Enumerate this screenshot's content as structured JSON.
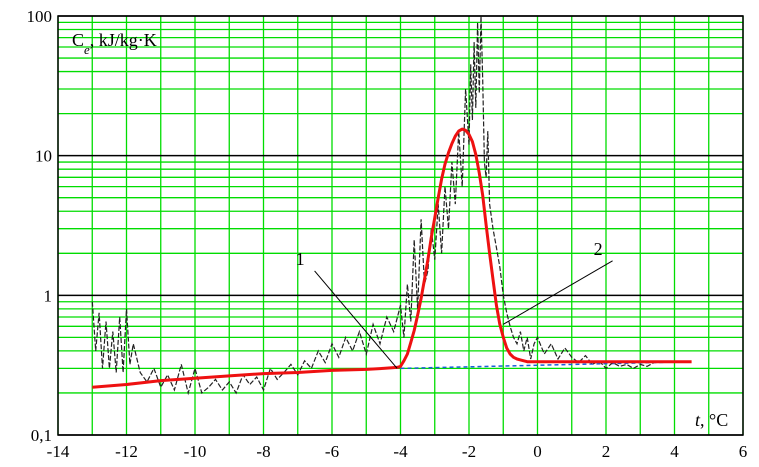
{
  "chart_data": {
    "type": "line",
    "x_scale": "linear",
    "y_scale": "log",
    "xlim": [
      -14,
      6
    ],
    "ylim": [
      0.1,
      100
    ],
    "grid": true,
    "y_axis_label_prefix": "C",
    "y_axis_label_sub": "e",
    "y_axis_label_suffix": ", kJ/kg·K",
    "x_axis_label_var": "t",
    "x_axis_label_unit": ", °C",
    "x_ticks": [
      "-14",
      "-12",
      "-10",
      "-8",
      "-6",
      "-4",
      "-2",
      "0",
      "2",
      "4",
      "6"
    ],
    "x_tick_values": [
      -14,
      -12,
      -10,
      -8,
      -6,
      -4,
      -2,
      0,
      2,
      4,
      6
    ],
    "y_ticks": [
      "0,1",
      "1",
      "10",
      "100"
    ],
    "y_tick_values": [
      0.1,
      1,
      10,
      100
    ],
    "annotations": [
      {
        "text": "1",
        "x": -4.1,
        "y": 0.3,
        "label_x": -6.8,
        "label_y": 1.65
      },
      {
        "text": "2",
        "x": -1.0,
        "y": 0.62,
        "label_x": 1.9,
        "label_y": 1.95
      }
    ],
    "colors": {
      "grid": "#00dd00",
      "major_grid": "#000000",
      "curve_2": "#ee1111",
      "curve_1": "#222222",
      "baseline": "#1a5fd8"
    },
    "series": [
      {
        "key": "curve_1",
        "style": "noisy",
        "x": [
          -13.0,
          -12.9,
          -12.8,
          -12.7,
          -12.6,
          -12.5,
          -12.4,
          -12.3,
          -12.2,
          -12.1,
          -12.0,
          -11.9,
          -11.8,
          -11.6,
          -11.4,
          -11.2,
          -11.0,
          -10.8,
          -10.6,
          -10.4,
          -10.2,
          -10.0,
          -9.8,
          -9.6,
          -9.4,
          -9.2,
          -9.0,
          -8.8,
          -8.6,
          -8.4,
          -8.2,
          -8.0,
          -7.8,
          -7.6,
          -7.4,
          -7.2,
          -7.0,
          -6.8,
          -6.6,
          -6.4,
          -6.2,
          -6.0,
          -5.8,
          -5.6,
          -5.4,
          -5.2,
          -5.0,
          -4.8,
          -4.6,
          -4.4,
          -4.2,
          -4.0,
          -3.9,
          -3.8,
          -3.7,
          -3.6,
          -3.5,
          -3.4,
          -3.3,
          -3.2,
          -3.1,
          -3.0,
          -2.9,
          -2.8,
          -2.7,
          -2.6,
          -2.5,
          -2.4,
          -2.3,
          -2.2,
          -2.1,
          -2.0,
          -1.95,
          -1.9,
          -1.85,
          -1.8,
          -1.75,
          -1.7,
          -1.65,
          -1.6,
          -1.55,
          -1.5,
          -1.45,
          -1.4,
          -1.3,
          -1.2,
          -1.1,
          -1.0,
          -0.9,
          -0.8,
          -0.7,
          -0.6,
          -0.5,
          -0.4,
          -0.3,
          -0.2,
          -0.1,
          0.0,
          0.2,
          0.4,
          0.6,
          0.8,
          1.0,
          1.2,
          1.4,
          1.6,
          1.8,
          2.0,
          2.2,
          2.4,
          2.6,
          2.8,
          3.0,
          3.2,
          3.4
        ],
        "y": [
          0.9,
          0.4,
          0.75,
          0.3,
          0.65,
          0.3,
          0.55,
          0.28,
          0.7,
          0.28,
          0.8,
          0.32,
          0.45,
          0.28,
          0.24,
          0.3,
          0.22,
          0.27,
          0.21,
          0.32,
          0.2,
          0.3,
          0.2,
          0.22,
          0.25,
          0.21,
          0.24,
          0.2,
          0.27,
          0.23,
          0.26,
          0.21,
          0.3,
          0.25,
          0.28,
          0.32,
          0.27,
          0.34,
          0.3,
          0.4,
          0.33,
          0.45,
          0.36,
          0.5,
          0.4,
          0.55,
          0.38,
          0.62,
          0.45,
          0.7,
          0.55,
          0.85,
          0.5,
          1.2,
          0.65,
          2.5,
          0.8,
          3.5,
          1.2,
          1.5,
          3.0,
          1.8,
          4.5,
          2.0,
          6.0,
          3.0,
          9.0,
          4.5,
          15.0,
          6.0,
          30.0,
          12.0,
          45.0,
          18.0,
          65.0,
          22.0,
          90.0,
          28.0,
          100.0,
          35.0,
          9.0,
          7.0,
          15.0,
          4.5,
          3.0,
          2.2,
          1.6,
          1.0,
          0.75,
          0.6,
          0.5,
          0.45,
          0.55,
          0.4,
          0.5,
          0.35,
          0.45,
          0.5,
          0.38,
          0.45,
          0.35,
          0.42,
          0.36,
          0.33,
          0.37,
          0.32,
          0.34,
          0.3,
          0.33,
          0.31,
          0.32,
          0.3,
          0.32,
          0.31,
          0.33
        ]
      },
      {
        "key": "curve_2",
        "style": "smooth",
        "x": [
          -13.0,
          -12.0,
          -11.0,
          -10.0,
          -9.0,
          -8.0,
          -7.0,
          -6.0,
          -5.0,
          -4.5,
          -4.1,
          -4.0,
          -3.9,
          -3.8,
          -3.7,
          -3.6,
          -3.5,
          -3.4,
          -3.3,
          -3.2,
          -3.1,
          -3.0,
          -2.9,
          -2.8,
          -2.7,
          -2.6,
          -2.5,
          -2.4,
          -2.3,
          -2.2,
          -2.1,
          -2.0,
          -1.9,
          -1.8,
          -1.7,
          -1.6,
          -1.5,
          -1.4,
          -1.3,
          -1.2,
          -1.1,
          -1.0,
          -0.9,
          -0.8,
          -0.7,
          -0.6,
          -0.5,
          -0.4,
          -0.3,
          -0.2,
          0.0,
          0.5,
          1.0,
          2.0,
          3.0,
          4.0,
          4.5
        ],
        "y": [
          0.22,
          0.23,
          0.245,
          0.255,
          0.265,
          0.275,
          0.28,
          0.29,
          0.295,
          0.3,
          0.305,
          0.31,
          0.34,
          0.38,
          0.46,
          0.56,
          0.72,
          0.95,
          1.3,
          1.8,
          2.6,
          3.6,
          5.0,
          6.8,
          8.7,
          10.5,
          12.2,
          13.8,
          15.0,
          15.5,
          15.2,
          14.2,
          12.6,
          10.2,
          7.5,
          5.2,
          3.2,
          2.0,
          1.3,
          0.85,
          0.62,
          0.5,
          0.42,
          0.38,
          0.36,
          0.35,
          0.345,
          0.34,
          0.335,
          0.335,
          0.335,
          0.335,
          0.335,
          0.335,
          0.335,
          0.335,
          0.335
        ]
      },
      {
        "key": "baseline",
        "style": "dashed",
        "x": [
          -4.0,
          4.5
        ],
        "y": [
          0.3,
          0.335
        ]
      }
    ]
  }
}
